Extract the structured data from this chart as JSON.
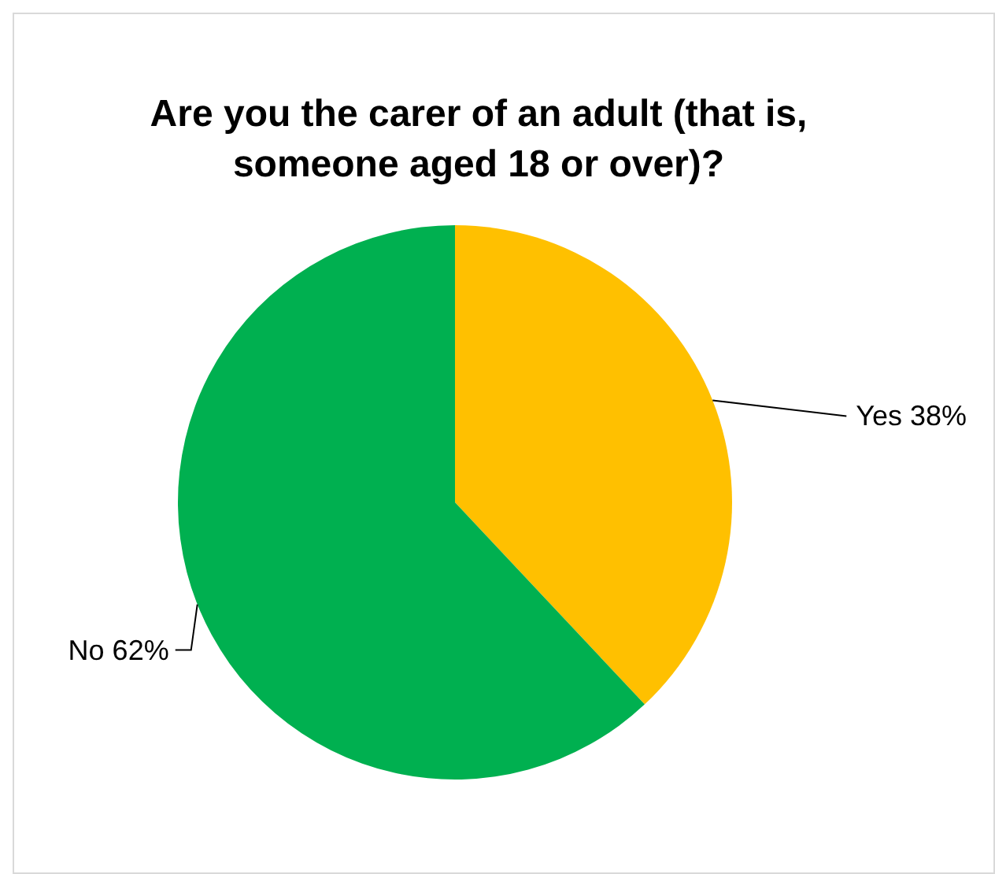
{
  "chart_data": {
    "type": "pie",
    "title": "Are you the carer of an adult (that is, someone aged 18 or over)?",
    "categories": [
      "Yes",
      "No"
    ],
    "values": [
      38,
      62
    ],
    "colors": [
      "#ffc000",
      "#00b050"
    ],
    "value_labels": [
      "38%",
      "62%"
    ],
    "legend": false
  }
}
